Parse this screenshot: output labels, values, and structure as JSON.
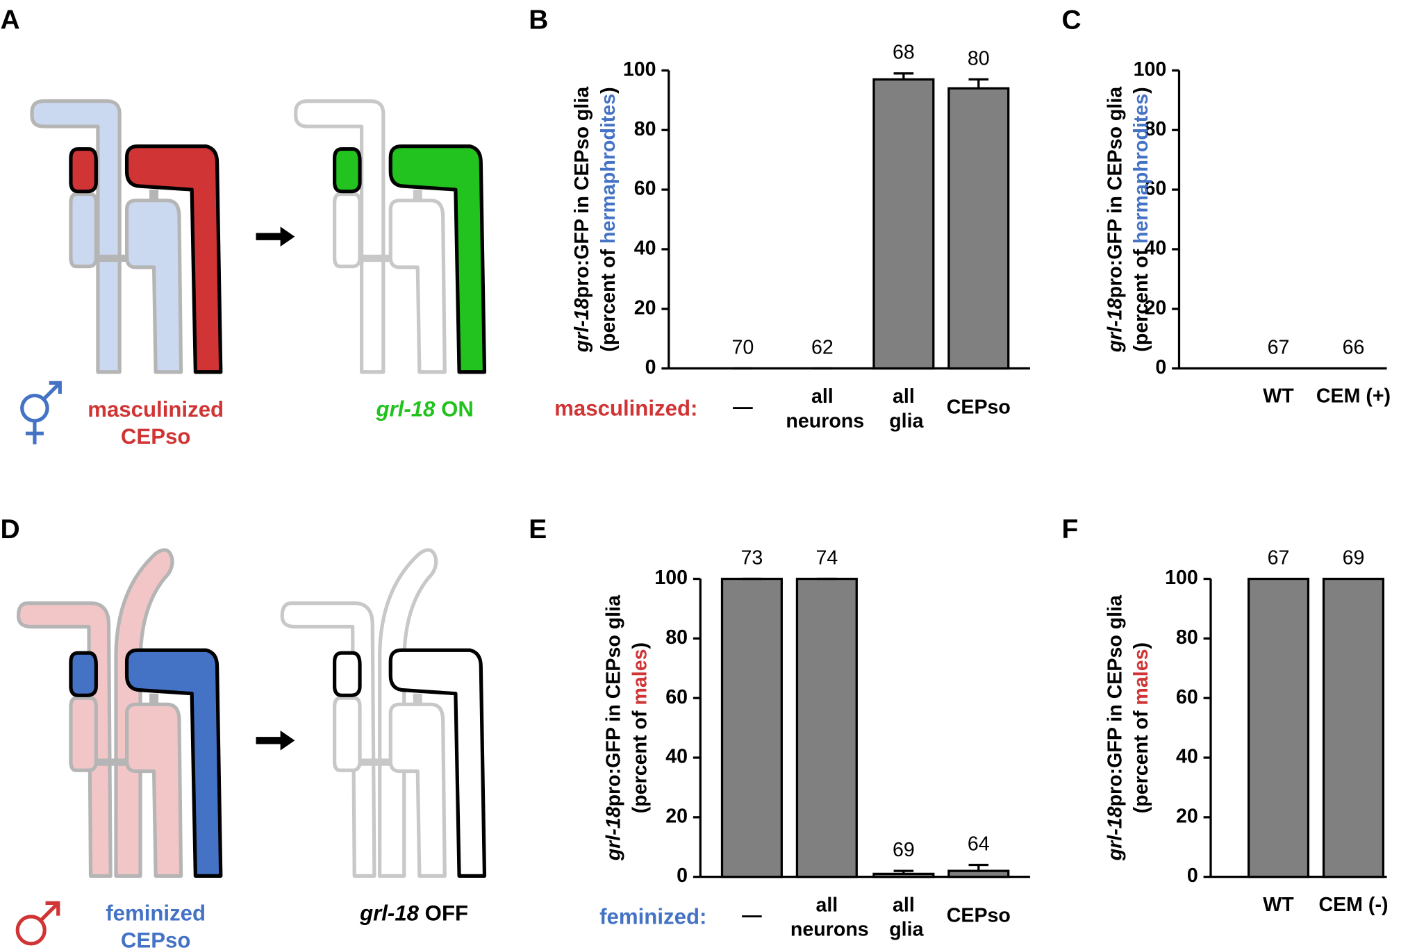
{
  "panel_labels": [
    "A",
    "B",
    "C",
    "D",
    "E",
    "F"
  ],
  "diagrams": [
    {
      "left_label": [
        "masculinized",
        "CEPso"
      ],
      "left_color": "#d03434",
      "right_label": [
        "grl-18",
        " ON"
      ],
      "right_color": "#22c31e",
      "cell_color": "#d03434",
      "body_color": "#cbd9f0"
    },
    {
      "left_label": [
        "feminized",
        "CEPso"
      ],
      "left_color": "#4472c4",
      "right_label": [
        "grl-18",
        " OFF"
      ],
      "right_color": "#000000",
      "cell_color": "#4472c4",
      "body_color": "#f2c6c6"
    }
  ],
  "chart_data": [
    {
      "type": "bar",
      "ylabel": [
        "grl-18",
        "pro:GFP in CEPso glia"
      ],
      "ylabel2": [
        "(percent of ",
        "hermaphrodites",
        ")"
      ],
      "highlight_color": "#4472c4",
      "x_prefix": "masculinized:",
      "x_prefix_color": "#d03434",
      "categories": [
        "—",
        "all neurons",
        "all glia",
        "CEPso"
      ],
      "values": [
        0,
        0,
        97,
        94
      ],
      "errors": [
        0,
        0,
        2,
        3
      ],
      "n": [
        70,
        62,
        68,
        80
      ],
      "color": "#808080",
      "ylim": [
        0,
        100
      ],
      "yticks": [
        0,
        20,
        40,
        60,
        80,
        100
      ]
    },
    {
      "type": "bar",
      "ylabel": [
        "grl-18",
        "pro:GFP in CEPso glia"
      ],
      "ylabel2": [
        "(percent of ",
        "hermaphrodites",
        ")"
      ],
      "highlight_color": "#4472c4",
      "categories": [
        "WT",
        "CEM (+)"
      ],
      "values": [
        0,
        0
      ],
      "n": [
        67,
        66
      ],
      "color": "#808080",
      "ylim": [
        0,
        100
      ],
      "yticks": [
        0,
        20,
        40,
        60,
        80,
        100
      ]
    },
    {
      "type": "bar",
      "ylabel": [
        "grl-18",
        "pro:GFP in CEPso glia"
      ],
      "ylabel2": [
        "(percent of ",
        "males",
        ")"
      ],
      "highlight_color": "#d03434",
      "x_prefix": "feminized:",
      "x_prefix_color": "#4472c4",
      "categories": [
        "—",
        "all neurons",
        "all glia",
        "CEPso"
      ],
      "values": [
        100,
        100,
        1,
        2
      ],
      "errors": [
        0,
        0,
        1,
        2
      ],
      "n": [
        73,
        74,
        69,
        64
      ],
      "color": "#808080",
      "ylim": [
        0,
        100
      ],
      "yticks": [
        0,
        20,
        40,
        60,
        80,
        100
      ]
    },
    {
      "type": "bar",
      "ylabel": [
        "grl-18",
        "pro:GFP in CEPso glia"
      ],
      "ylabel2": [
        "(percent of ",
        "males",
        ")"
      ],
      "highlight_color": "#d03434",
      "categories": [
        "WT",
        "CEM (-)"
      ],
      "values": [
        100,
        100
      ],
      "n": [
        67,
        69
      ],
      "color": "#808080",
      "ylim": [
        0,
        100
      ],
      "yticks": [
        0,
        20,
        40,
        60,
        80,
        100
      ]
    }
  ]
}
